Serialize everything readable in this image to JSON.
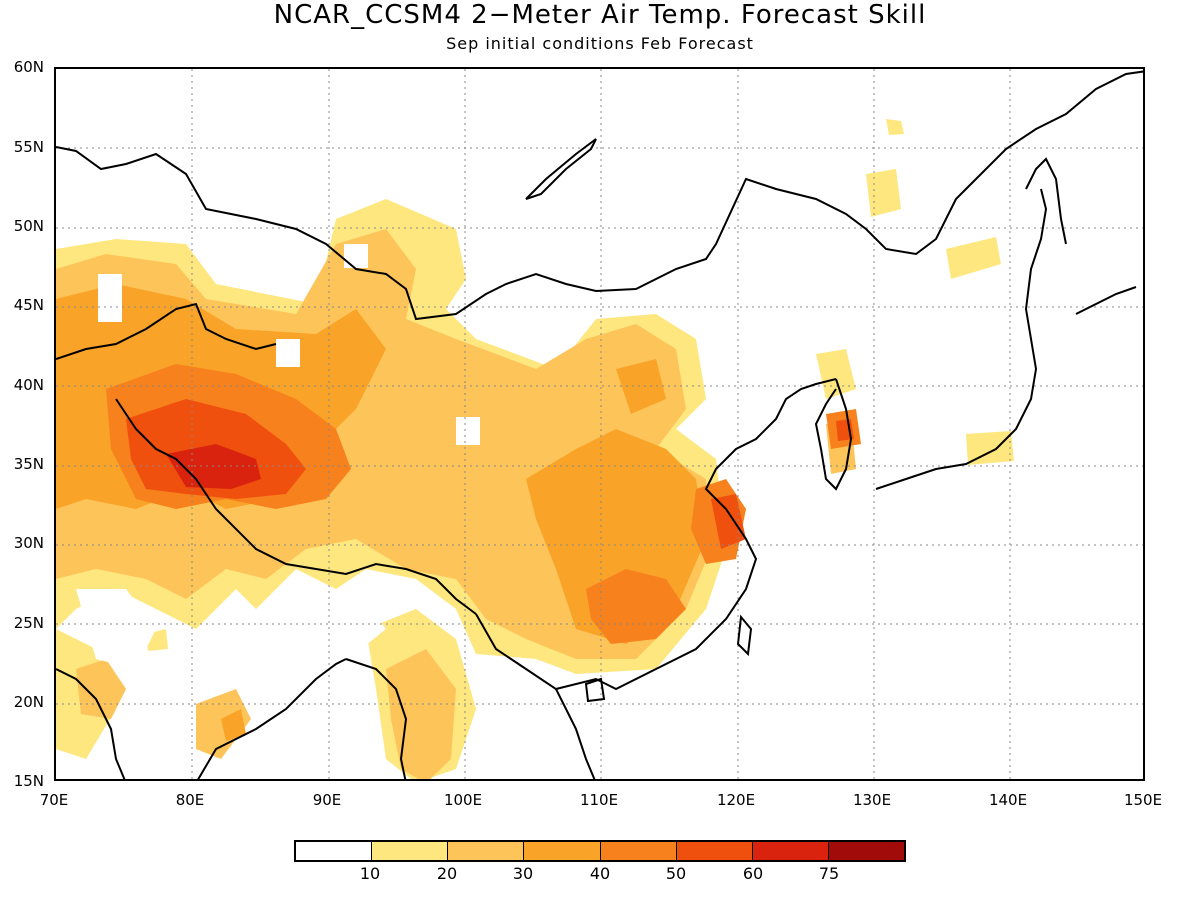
{
  "title": "NCAR_CCSM4 2−Meter Air Temp. Forecast Skill",
  "subtitle": "Sep initial conditions  Feb Forecast",
  "lat_labels": [
    "60N",
    "55N",
    "50N",
    "45N",
    "40N",
    "35N",
    "30N",
    "25N",
    "20N",
    "15N"
  ],
  "lon_labels": [
    "70E",
    "80E",
    "90E",
    "100E",
    "110E",
    "120E",
    "130E",
    "140E",
    "150E"
  ],
  "colorbar": {
    "levels": [
      "10",
      "20",
      "30",
      "40",
      "50",
      "60",
      "75"
    ],
    "colors": [
      "#ffffff",
      "#fee77f",
      "#fdc45a",
      "#f9a328",
      "#f7811c",
      "#f0500e",
      "#d9230e",
      "#a10c0a"
    ]
  },
  "extent": {
    "lon_min": 70,
    "lon_max": 150,
    "lat_min": 15,
    "lat_max": 60
  }
}
